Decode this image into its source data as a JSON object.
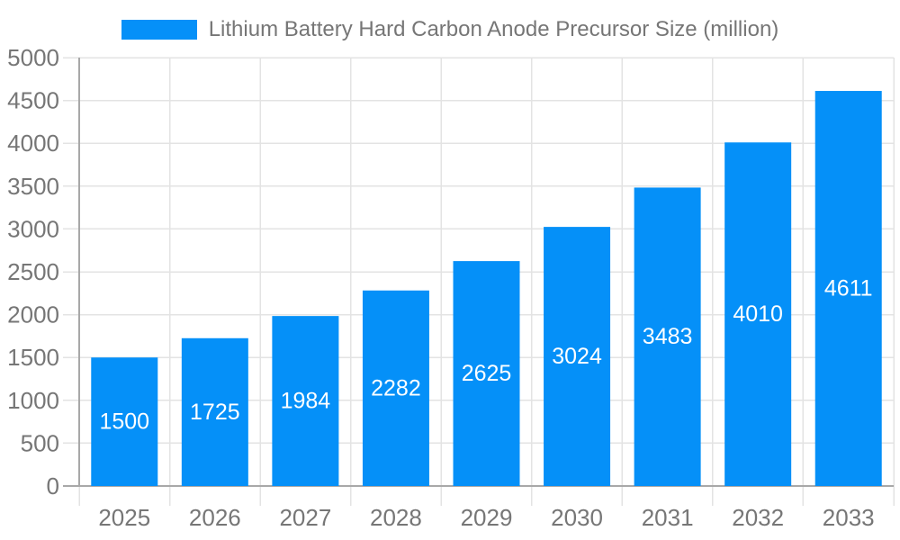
{
  "legend": {
    "label": "Lithium Battery Hard Carbon Anode Precursor Size (million)"
  },
  "chart_data": {
    "type": "bar",
    "title": "Lithium Battery Hard Carbon Anode Precursor Size (million)",
    "categories": [
      "2025",
      "2026",
      "2027",
      "2028",
      "2029",
      "2030",
      "2031",
      "2032",
      "2033"
    ],
    "values": [
      1500,
      1725,
      1984,
      2282,
      2625,
      3024,
      3483,
      4010,
      4611
    ],
    "xlabel": "",
    "ylabel": "",
    "ylim": [
      0,
      5000
    ],
    "ytick_step": 500,
    "yticks": [
      0,
      500,
      1000,
      1500,
      2000,
      2500,
      3000,
      3500,
      4000,
      4500,
      5000
    ],
    "grid": true,
    "legend_position": "top-center",
    "value_labels": "inside-center",
    "colors": {
      "bar": "#0590F8",
      "bar_label": "#FFFFFF",
      "axis_text": "#767676",
      "grid": "#E3E3E3",
      "axis_line": "#A8A8A8",
      "background": "#FFFFFF"
    }
  }
}
